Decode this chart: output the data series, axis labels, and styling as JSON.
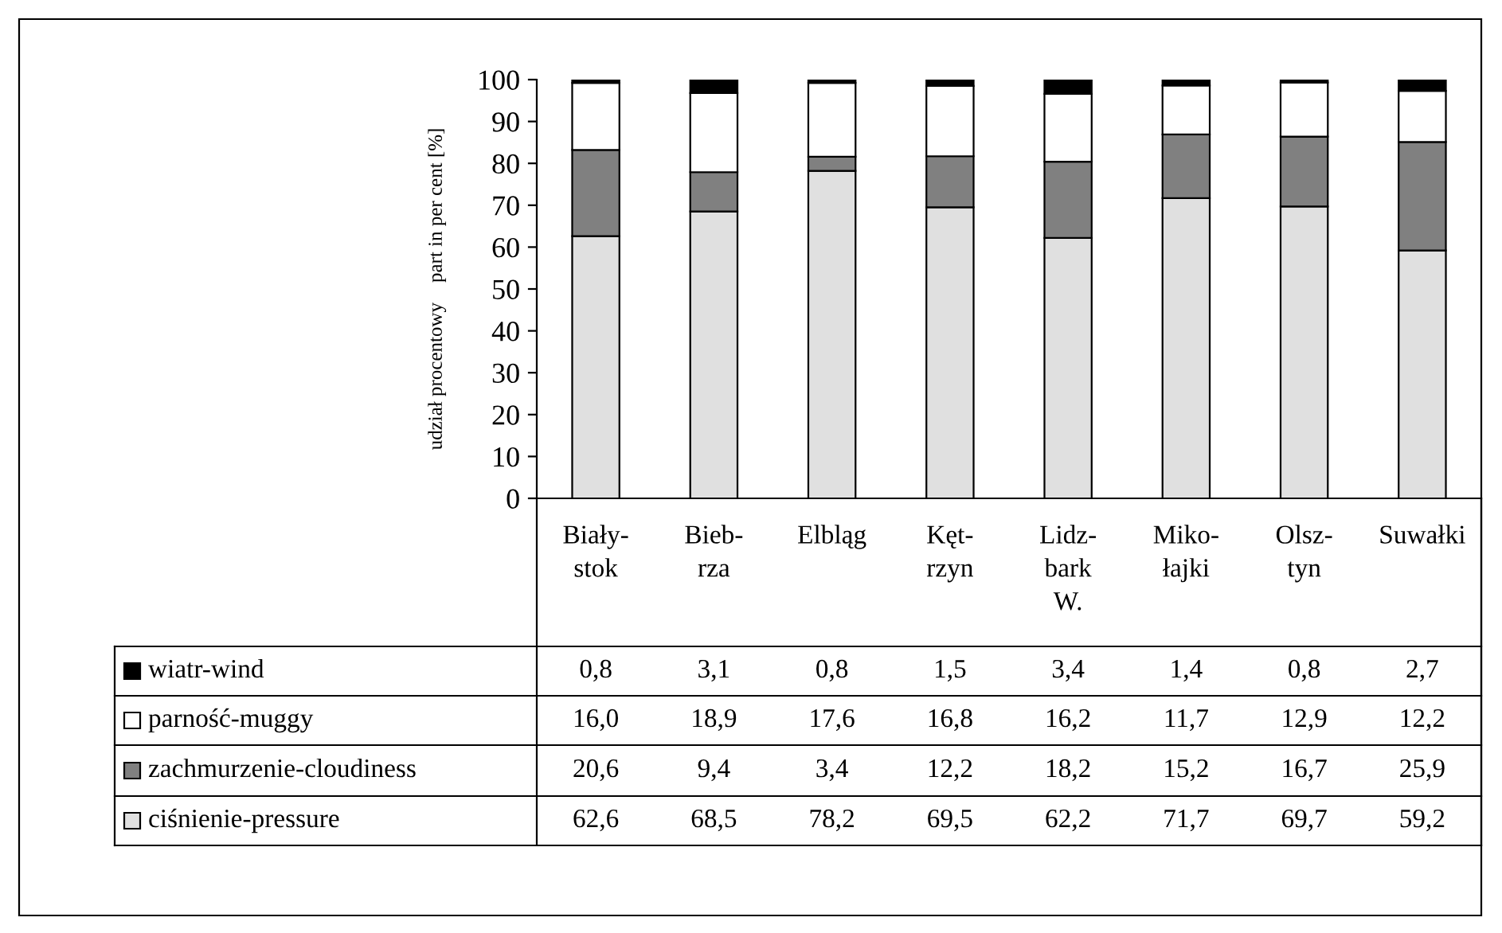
{
  "chart_data": {
    "type": "bar",
    "stacked": true,
    "ylabel": "udział procentowy    part in per cent [%]",
    "categories": [
      "Biały-\nstok",
      "Bieb-\nrza",
      "Elbląg",
      "Kęt-\nrzyn",
      "Lidz-\nbark\nW.",
      "Miko-\nłajki",
      "Olsz-\ntyn",
      "Suwałki"
    ],
    "series": [
      {
        "name": "ciśnienie-pressure",
        "color": "#e0e0e0",
        "values": [
          62.6,
          68.5,
          78.2,
          69.5,
          62.2,
          71.7,
          69.7,
          59.2
        ],
        "value_labels": [
          "62,6",
          "68,5",
          "78,2",
          "69,5",
          "62,2",
          "71,7",
          "69,7",
          "59,2"
        ]
      },
      {
        "name": "zachmurzenie-cloudiness",
        "color": "#808080",
        "values": [
          20.6,
          9.4,
          3.4,
          12.2,
          18.2,
          15.2,
          16.7,
          25.9
        ],
        "value_labels": [
          "20,6",
          "9,4",
          "3,4",
          "12,2",
          "18,2",
          "15,2",
          "16,7",
          "25,9"
        ]
      },
      {
        "name": "parność-muggy",
        "color": "#ffffff",
        "values": [
          16.0,
          18.9,
          17.6,
          16.8,
          16.2,
          11.7,
          12.9,
          12.2
        ],
        "value_labels": [
          "16,0",
          "18,9",
          "17,6",
          "16,8",
          "16,2",
          "11,7",
          "12,9",
          "12,2"
        ]
      },
      {
        "name": "wiatr-wind",
        "color": "#000000",
        "values": [
          0.8,
          3.1,
          0.8,
          1.5,
          3.4,
          1.4,
          0.8,
          2.7
        ],
        "value_labels": [
          "0,8",
          "3,1",
          "0,8",
          "1,5",
          "3,4",
          "1,4",
          "0,8",
          "2,7"
        ]
      }
    ],
    "ylim": [
      0,
      100
    ],
    "yticks": [
      0,
      10,
      20,
      30,
      40,
      50,
      60,
      70,
      80,
      90,
      100
    ],
    "grid": false,
    "legend": "bottom"
  }
}
